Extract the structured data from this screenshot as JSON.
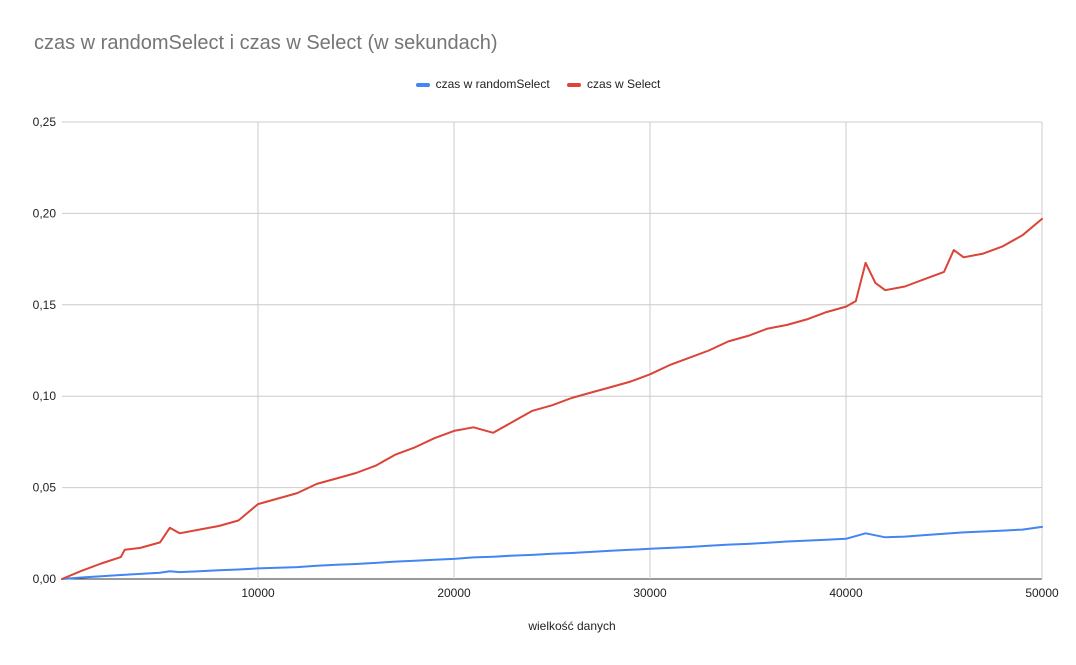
{
  "chart_data": {
    "type": "line",
    "title": "czas w randomSelect i czas w Select (w sekundach)",
    "xlabel": "wielkość danych",
    "ylabel": "",
    "xlim": [
      0,
      50000
    ],
    "ylim": [
      0,
      0.25
    ],
    "x_ticks": [
      10000,
      20000,
      30000,
      40000,
      50000
    ],
    "x_tick_labels": [
      "10000",
      "20000",
      "30000",
      "40000",
      "50000"
    ],
    "y_ticks": [
      0,
      0.05,
      0.1,
      0.15,
      0.2,
      0.25
    ],
    "y_tick_labels": [
      "0,00",
      "0,05",
      "0,10",
      "0,15",
      "0,20",
      "0,25"
    ],
    "grid": true,
    "legend_position": "top",
    "series": [
      {
        "name": "czas w randomSelect",
        "color": "#4285f4",
        "x": [
          0,
          1000,
          2000,
          3000,
          4000,
          5000,
          5500,
          6000,
          7000,
          8000,
          9000,
          10000,
          11000,
          12000,
          13000,
          14000,
          15000,
          16000,
          17000,
          18000,
          19000,
          20000,
          21000,
          22000,
          23000,
          24000,
          25000,
          26000,
          27000,
          28000,
          29000,
          30000,
          31000,
          32000,
          33000,
          34000,
          35000,
          36000,
          37000,
          38000,
          39000,
          40000,
          41000,
          42000,
          43000,
          44000,
          45000,
          46000,
          47000,
          48000,
          49000,
          50000
        ],
        "values": [
          0,
          0.0008,
          0.0015,
          0.0022,
          0.0028,
          0.0034,
          0.0042,
          0.0038,
          0.0042,
          0.0048,
          0.0052,
          0.0058,
          0.0062,
          0.0065,
          0.0072,
          0.0078,
          0.0082,
          0.0088,
          0.0095,
          0.01,
          0.0105,
          0.011,
          0.0118,
          0.0122,
          0.0128,
          0.0132,
          0.0138,
          0.0142,
          0.0148,
          0.0155,
          0.016,
          0.0165,
          0.017,
          0.0175,
          0.0182,
          0.0188,
          0.0192,
          0.0198,
          0.0205,
          0.021,
          0.0215,
          0.022,
          0.025,
          0.0228,
          0.0232,
          0.024,
          0.0248,
          0.0255,
          0.026,
          0.0265,
          0.027,
          0.0285
        ]
      },
      {
        "name": "czas w Select",
        "color": "#db4437",
        "x": [
          0,
          1000,
          2000,
          3000,
          3200,
          4000,
          5000,
          5500,
          6000,
          7000,
          8000,
          9000,
          10000,
          11000,
          12000,
          13000,
          14000,
          15000,
          16000,
          17000,
          18000,
          19000,
          20000,
          21000,
          22000,
          23000,
          24000,
          25000,
          26000,
          27000,
          28000,
          29000,
          30000,
          31000,
          32000,
          33000,
          34000,
          35000,
          36000,
          37000,
          38000,
          39000,
          40000,
          40500,
          41000,
          41500,
          42000,
          43000,
          44000,
          45000,
          45500,
          46000,
          47000,
          48000,
          49000,
          50000
        ],
        "values": [
          0,
          0.0045,
          0.0085,
          0.012,
          0.016,
          0.017,
          0.02,
          0.028,
          0.025,
          0.027,
          0.029,
          0.032,
          0.041,
          0.044,
          0.047,
          0.052,
          0.055,
          0.058,
          0.062,
          0.068,
          0.072,
          0.077,
          0.081,
          0.083,
          0.08,
          0.086,
          0.092,
          0.095,
          0.099,
          0.102,
          0.105,
          0.108,
          0.112,
          0.117,
          0.121,
          0.125,
          0.13,
          0.133,
          0.137,
          0.139,
          0.142,
          0.146,
          0.149,
          0.152,
          0.173,
          0.162,
          0.158,
          0.16,
          0.164,
          0.168,
          0.18,
          0.176,
          0.178,
          0.182,
          0.188,
          0.197
        ]
      }
    ]
  }
}
